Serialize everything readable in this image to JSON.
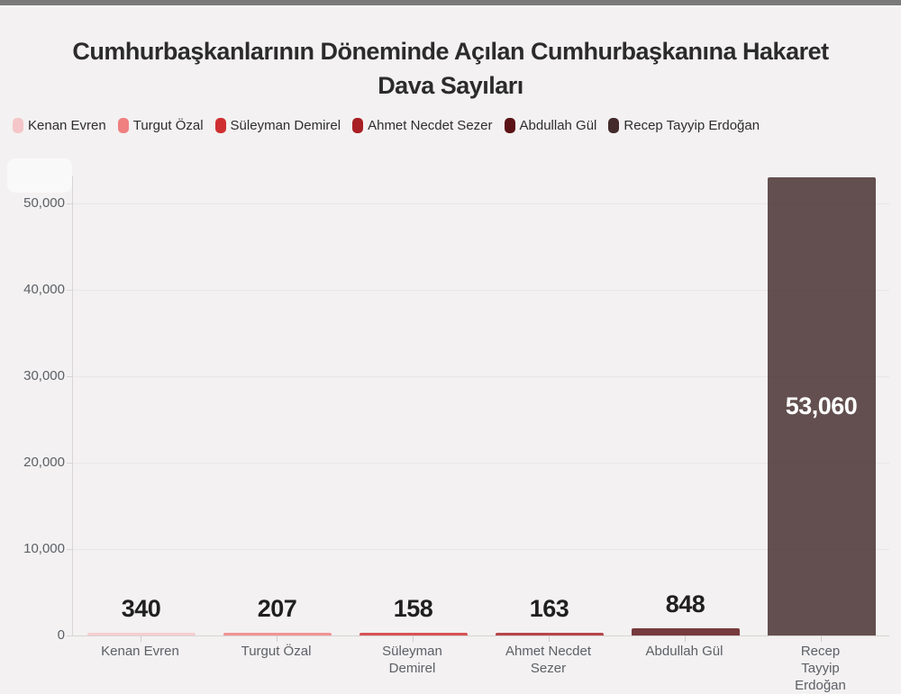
{
  "chart_data": {
    "type": "bar",
    "title": "Cumhurbaşkanlarının Döneminde Açılan Cumhurbaşkanına Hakaret Dava Sayıları",
    "title_line1": "Cumhurbaşkanlarının Döneminde Açılan Cumhurbaşkanına Hakaret",
    "title_line2": "Dava Sayıları",
    "categories": [
      "Kenan Evren",
      "Turgut Özal",
      "Süleyman Demirel",
      "Ahmet Necdet Sezer",
      "Abdullah Gül",
      "Recep Tayyip Erdoğan"
    ],
    "values": [
      340,
      207,
      158,
      163,
      848,
      53060
    ],
    "value_labels": [
      "340",
      "207",
      "158",
      "163",
      "848",
      "53,060"
    ],
    "colors": [
      "#f5c6c9",
      "#f07f80",
      "#d02f32",
      "#a81f24",
      "#5a1215",
      "#432b2b"
    ],
    "legend_entries": [
      "Kenan Evren",
      "Turgut Özal",
      "Süleyman Demirel",
      "Ahmet Necdet Sezer",
      "Abdullah Gül",
      "Recep Tayyip Erdoğan"
    ],
    "y_ticks": [
      0,
      10000,
      20000,
      30000,
      40000,
      50000
    ],
    "y_tick_labels": [
      "0",
      "10,000",
      "20,000",
      "30,000",
      "40,000",
      "50,000"
    ],
    "ylim": [
      0,
      53125
    ],
    "grid": true,
    "legend_position": "top-left",
    "xlabel": "",
    "ylabel": ""
  }
}
